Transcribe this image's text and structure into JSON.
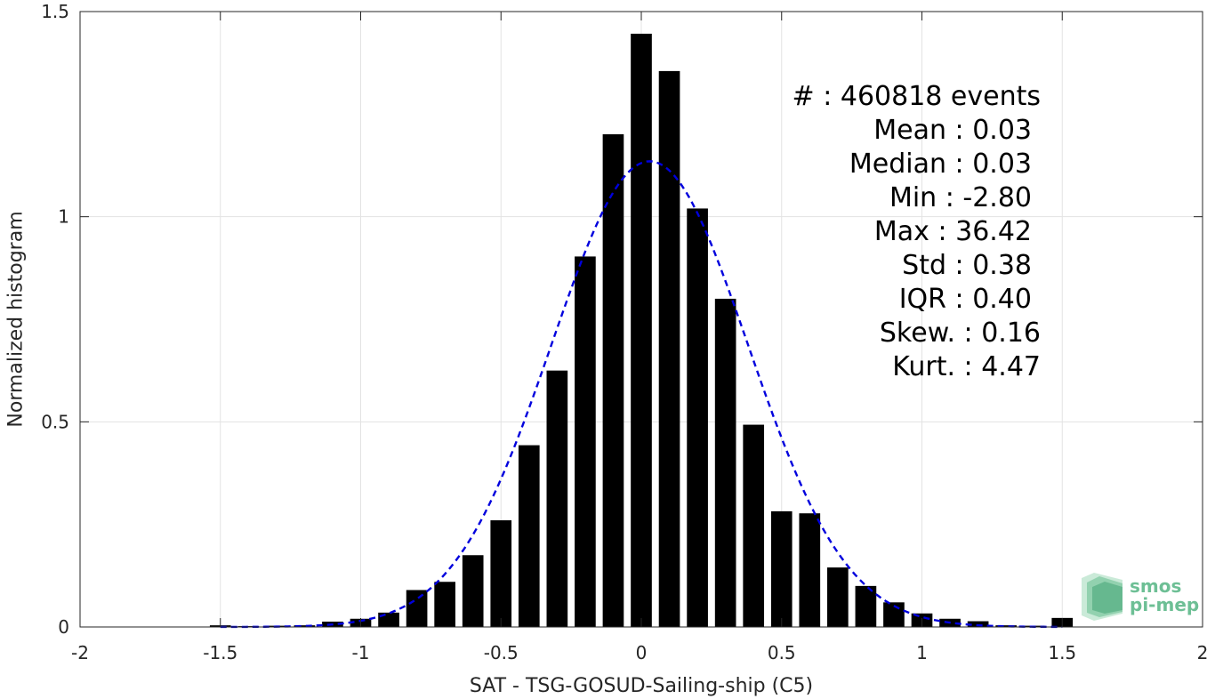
{
  "chart_data": {
    "type": "bar",
    "xlabel": "SAT - TSG-GOSUD-Sailing-ship (C5)",
    "ylabel": "Normalized histogram",
    "xlim": [
      -2,
      2
    ],
    "ylim": [
      0,
      1.5
    ],
    "x_ticks": [
      -2,
      -1.5,
      -1,
      -0.5,
      0,
      0.5,
      1,
      1.5,
      2
    ],
    "x_tick_labels": [
      "-2",
      "-1.5",
      "-1",
      "-0.5",
      "0",
      "0.5",
      "1",
      "1.5",
      "2"
    ],
    "y_ticks": [
      0,
      0.5,
      1,
      1.5
    ],
    "y_tick_labels": [
      "0",
      "0.5",
      "1",
      "1.5"
    ],
    "grid": true,
    "bar_color": "#000000",
    "fit_color": "#0000dd",
    "bins": [
      -1.5,
      -1.4,
      -1.3,
      -1.2,
      -1.1,
      -1.0,
      -0.9,
      -0.8,
      -0.7,
      -0.6,
      -0.5,
      -0.4,
      -0.3,
      -0.2,
      -0.1,
      0.0,
      0.1,
      0.2,
      0.3,
      0.4,
      0.5,
      0.6,
      0.7,
      0.8,
      0.9,
      1.0,
      1.1,
      1.2,
      1.3,
      1.4,
      1.5
    ],
    "values": [
      0.004,
      0.002,
      0.003,
      0.004,
      0.013,
      0.02,
      0.035,
      0.09,
      0.11,
      0.175,
      0.26,
      0.443,
      0.625,
      0.903,
      1.201,
      1.446,
      1.355,
      1.02,
      0.8,
      0.493,
      0.282,
      0.277,
      0.145,
      0.1,
      0.06,
      0.033,
      0.02,
      0.014,
      0.004,
      0.003,
      0.022
    ],
    "fit": {
      "type": "gaussian",
      "mean": 0.03,
      "std": 0.35,
      "peak": 1.135,
      "x_range": [
        -1.5,
        1.5
      ]
    },
    "stats": [
      "#  : 460818 events",
      "Mean : 0.03",
      "Median : 0.03",
      "Min : -2.80",
      "Max : 36.42",
      "Std : 0.38",
      "IQR : 0.40",
      "Skew. : 0.16",
      "Kurt. : 4.47"
    ]
  },
  "logo": {
    "line1": "smos",
    "line2": "pi-mep",
    "color": "#6dbf95"
  }
}
